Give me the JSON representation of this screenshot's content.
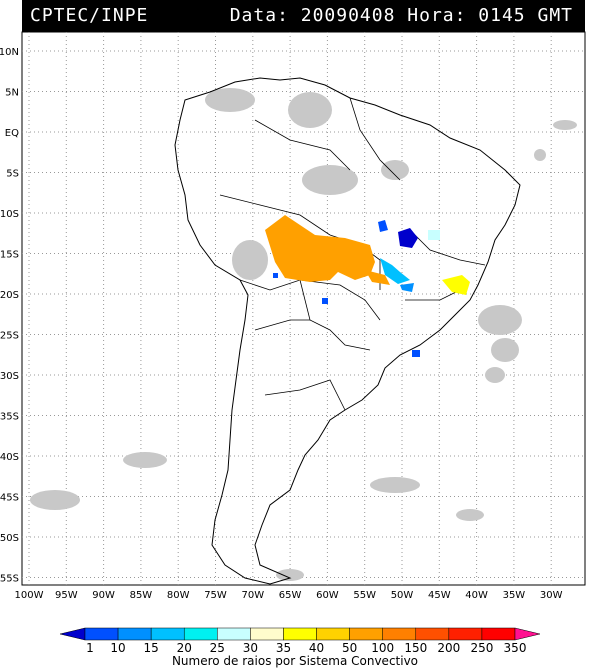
{
  "header": {
    "source": "CPTEC/INPE",
    "datetime": "Data: 20090408 Hora: 0145 GMT"
  },
  "map": {
    "lat_labels": [
      "10N",
      "5N",
      "EQ",
      "5S",
      "10S",
      "15S",
      "20S",
      "25S",
      "30S",
      "35S",
      "40S",
      "45S",
      "50S",
      "55S"
    ],
    "lon_labels": [
      "100W",
      "95W",
      "90W",
      "85W",
      "80W",
      "75W",
      "70W",
      "65W",
      "60W",
      "55W",
      "50W",
      "45W",
      "40W",
      "35W",
      "30W"
    ],
    "region": "South America"
  },
  "legend": {
    "title": "Numero de raios por Sistema Convectivo",
    "ticks": [
      "1",
      "10",
      "15",
      "20",
      "25",
      "30",
      "35",
      "40",
      "50",
      "100",
      "150",
      "200",
      "250",
      "350"
    ],
    "colors": [
      "#0000cc",
      "#0050ff",
      "#0090ff",
      "#00c0ff",
      "#00f0f0",
      "#c8ffff",
      "#fffccc",
      "#ffff00",
      "#ffd200",
      "#ffa000",
      "#ff8000",
      "#ff5000",
      "#ff2000",
      "#ff0000",
      "#ff1090"
    ]
  }
}
